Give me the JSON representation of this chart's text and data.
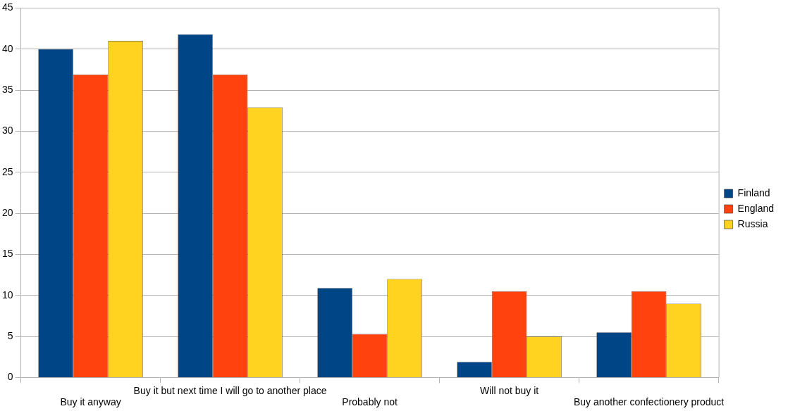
{
  "chart_data": {
    "type": "bar",
    "categories": [
      "Buy it anyway",
      "Buy it but next time I will go to another place",
      "Probably not",
      "Will not buy it",
      "Buy another confectionery product"
    ],
    "series": [
      {
        "name": "Finland",
        "color": "#004586",
        "values": [
          40,
          41.8,
          10.9,
          1.9,
          5.5
        ]
      },
      {
        "name": "England",
        "color": "#ff420e",
        "values": [
          36.9,
          36.9,
          5.3,
          10.5,
          10.5
        ]
      },
      {
        "name": "Russia",
        "color": "#ffd320",
        "values": [
          41,
          32.9,
          12,
          5,
          9
        ]
      }
    ],
    "ylim": [
      0,
      45
    ],
    "yticks": [
      0,
      5,
      10,
      15,
      20,
      25,
      30,
      35,
      40,
      45
    ],
    "grid": "y",
    "legend": "right"
  }
}
